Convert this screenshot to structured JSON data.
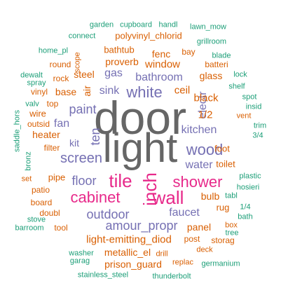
{
  "palette": {
    "green": "#1b9e77",
    "orange": "#d95f02",
    "purple": "#7570b3",
    "magenta": "#e7298a",
    "gray": "#666666"
  },
  "words": [
    {
      "text": "door",
      "color": "gray"
    },
    {
      "text": "light",
      "color": "gray"
    },
    {
      "text": "tile",
      "color": "magenta"
    },
    {
      "text": "shower",
      "color": "magenta"
    },
    {
      "text": "cabinet",
      "color": "magenta"
    },
    {
      "text": "wall",
      "color": "magenta"
    },
    {
      "text": "inch",
      "color": "magenta"
    },
    {
      "text": "wood",
      "color": "purple"
    },
    {
      "text": "white",
      "color": "purple"
    },
    {
      "text": "paint",
      "color": "purple"
    },
    {
      "text": "screen",
      "color": "purple"
    },
    {
      "text": "kitchen",
      "color": "purple"
    },
    {
      "text": "outdoor",
      "color": "purple"
    },
    {
      "text": "amour_propr",
      "color": "purple"
    },
    {
      "text": "floor",
      "color": "purple"
    },
    {
      "text": "faucet",
      "color": "purple"
    },
    {
      "text": "water",
      "color": "purple"
    },
    {
      "text": "bathroom",
      "color": "purple"
    },
    {
      "text": "sink",
      "color": "purple"
    },
    {
      "text": "ten",
      "color": "purple"
    },
    {
      "text": "gas",
      "color": "purple"
    },
    {
      "text": "fan",
      "color": "purple"
    },
    {
      "text": "kit",
      "color": "purple"
    },
    {
      "text": "electr",
      "color": "purple"
    },
    {
      "text": "light-emitting_diod",
      "color": "orange"
    },
    {
      "text": "window",
      "color": "orange"
    },
    {
      "text": "1/2",
      "color": "orange"
    },
    {
      "text": "ceil",
      "color": "orange"
    },
    {
      "text": "black",
      "color": "orange"
    },
    {
      "text": "bulb",
      "color": "orange"
    },
    {
      "text": "glass",
      "color": "orange"
    },
    {
      "text": "proverb",
      "color": "orange"
    },
    {
      "text": "steel",
      "color": "orange"
    },
    {
      "text": "air",
      "color": "orange"
    },
    {
      "text": "base",
      "color": "orange"
    },
    {
      "text": "heater",
      "color": "orange"
    },
    {
      "text": "wire",
      "color": "orange"
    },
    {
      "text": "pipe",
      "color": "orange"
    },
    {
      "text": "rug",
      "color": "orange"
    },
    {
      "text": "toilet",
      "color": "orange"
    },
    {
      "text": "foot",
      "color": "orange"
    },
    {
      "text": "panel",
      "color": "orange"
    },
    {
      "text": "metallic_el",
      "color": "orange"
    },
    {
      "text": "prison_guard",
      "color": "orange"
    },
    {
      "text": "fenc",
      "color": "orange"
    },
    {
      "text": "bathtub",
      "color": "orange"
    },
    {
      "text": "top",
      "color": "orange"
    },
    {
      "text": "filter",
      "color": "orange"
    },
    {
      "text": "patio",
      "color": "orange"
    },
    {
      "text": "board",
      "color": "orange"
    },
    {
      "text": "doubl",
      "color": "orange"
    },
    {
      "text": "tool",
      "color": "orange"
    },
    {
      "text": "post",
      "color": "orange"
    },
    {
      "text": "storag",
      "color": "orange"
    },
    {
      "text": "polyvinyl_chlorid",
      "color": "orange"
    },
    {
      "text": "bay",
      "color": "orange"
    },
    {
      "text": "rock",
      "color": "orange"
    },
    {
      "text": "round",
      "color": "orange"
    },
    {
      "text": "vinyl",
      "color": "orange"
    },
    {
      "text": "batteri",
      "color": "orange"
    },
    {
      "text": "scope",
      "color": "orange"
    },
    {
      "text": "outsid",
      "color": "orange"
    },
    {
      "text": "set",
      "color": "orange"
    },
    {
      "text": "box",
      "color": "orange"
    },
    {
      "text": "drill",
      "color": "orange"
    },
    {
      "text": "replac",
      "color": "orange"
    },
    {
      "text": "deck",
      "color": "orange"
    },
    {
      "text": "vent",
      "color": "orange"
    },
    {
      "text": "garden",
      "color": "green"
    },
    {
      "text": "cupboard",
      "color": "green"
    },
    {
      "text": "handl",
      "color": "green"
    },
    {
      "text": "lawn_mow",
      "color": "green"
    },
    {
      "text": "connect",
      "color": "green"
    },
    {
      "text": "grillroom",
      "color": "green"
    },
    {
      "text": "home_pl",
      "color": "green"
    },
    {
      "text": "blade",
      "color": "green"
    },
    {
      "text": "dewalt",
      "color": "green"
    },
    {
      "text": "spray",
      "color": "green"
    },
    {
      "text": "lock",
      "color": "green"
    },
    {
      "text": "shelf",
      "color": "green"
    },
    {
      "text": "spot",
      "color": "green"
    },
    {
      "text": "insid",
      "color": "green"
    },
    {
      "text": "trim",
      "color": "green"
    },
    {
      "text": "3/4",
      "color": "green"
    },
    {
      "text": "valv",
      "color": "green"
    },
    {
      "text": "saddle_hors",
      "color": "green"
    },
    {
      "text": "bronz",
      "color": "green"
    },
    {
      "text": "plastic",
      "color": "green"
    },
    {
      "text": "hosieri",
      "color": "green"
    },
    {
      "text": "tabl",
      "color": "green"
    },
    {
      "text": "1/4",
      "color": "green"
    },
    {
      "text": "bath",
      "color": "green"
    },
    {
      "text": "stove",
      "color": "green"
    },
    {
      "text": "barroom",
      "color": "green"
    },
    {
      "text": "tree",
      "color": "green"
    },
    {
      "text": "washer",
      "color": "green"
    },
    {
      "text": "garag",
      "color": "green"
    },
    {
      "text": "germanium",
      "color": "green"
    },
    {
      "text": "stainless_steel",
      "color": "green"
    },
    {
      "text": "thunderbolt",
      "color": "green"
    }
  ]
}
